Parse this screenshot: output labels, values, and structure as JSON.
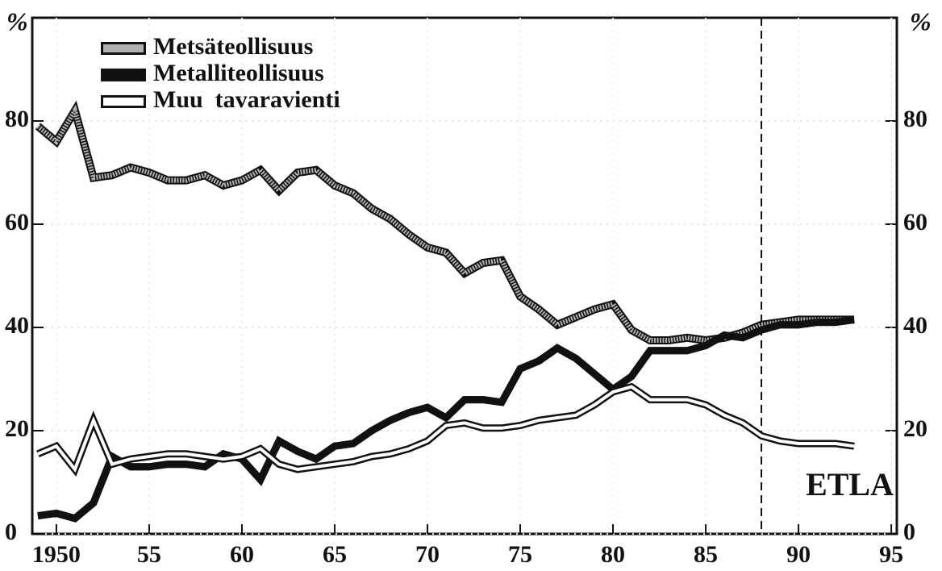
{
  "chart_data": {
    "type": "line",
    "unit": "%",
    "annotation": "ETLA",
    "reference_line_x": 1988,
    "x": [
      1949,
      1950,
      1951,
      1952,
      1953,
      1954,
      1955,
      1956,
      1957,
      1958,
      1959,
      1960,
      1961,
      1962,
      1963,
      1964,
      1965,
      1966,
      1967,
      1968,
      1969,
      1970,
      1971,
      1972,
      1973,
      1974,
      1975,
      1976,
      1977,
      1978,
      1979,
      1980,
      1981,
      1982,
      1983,
      1984,
      1985,
      1986,
      1987,
      1988,
      1989,
      1990,
      1991,
      1992,
      1993
    ],
    "series": [
      {
        "name": "Metsäteollisuus",
        "color": "#b0b0b0",
        "values": [
          79,
          76,
          82,
          69,
          69.5,
          71,
          70,
          68.5,
          68.5,
          69.5,
          67.5,
          68.5,
          70.5,
          66.5,
          70,
          70.5,
          67.5,
          66,
          63,
          61,
          58,
          55.5,
          54.5,
          50.5,
          52.5,
          53,
          46,
          43.5,
          40.5,
          42,
          43.5,
          44.5,
          39.5,
          37.5,
          37.5,
          38,
          37.5,
          38,
          39,
          40.5,
          41,
          41.5,
          41.5,
          41.5,
          41.5
        ]
      },
      {
        "name": "Metalliteollisuus",
        "color": "#111111",
        "values": [
          3.5,
          4,
          3,
          6,
          15,
          13,
          13,
          13.5,
          13.5,
          13,
          15.5,
          14.5,
          10.5,
          18,
          16,
          14.5,
          17,
          17.5,
          20,
          22,
          23.5,
          24.5,
          22.5,
          26,
          26,
          25.5,
          32,
          33.5,
          36,
          34,
          31,
          28,
          30.5,
          35.5,
          35.5,
          35.5,
          36.5,
          38.5,
          38,
          39.5,
          40.5,
          40.5,
          41,
          41,
          41.5
        ]
      },
      {
        "name": "Muu  tavaravienti",
        "color": "#ffffff",
        "values": [
          15.5,
          17,
          12.5,
          22,
          13.5,
          14.5,
          15,
          15.5,
          15.5,
          15,
          14.5,
          15,
          16.5,
          13.5,
          12.5,
          13,
          13.5,
          14,
          15,
          15.5,
          16.5,
          18,
          21,
          21.5,
          20.5,
          20.5,
          21,
          22,
          22.5,
          23,
          25,
          27.5,
          28.5,
          26,
          26,
          26,
          25,
          23,
          21.5,
          19,
          18,
          17.5,
          17.5,
          17.5,
          17
        ]
      }
    ],
    "xlim": [
      1948.7,
      1995.3
    ],
    "xticks": [
      1950,
      {
        "value": 1955,
        "label": "55"
      },
      {
        "value": 1960,
        "label": "60"
      },
      {
        "value": 1965,
        "label": "65"
      },
      {
        "value": 1970,
        "label": "70"
      },
      {
        "value": 1975,
        "label": "75"
      },
      {
        "value": 1980,
        "label": "80"
      },
      {
        "value": 1985,
        "label": "85"
      },
      {
        "value": 1990,
        "label": "90"
      },
      {
        "value": 1995,
        "label": "95"
      }
    ],
    "ylim": [
      0,
      100
    ],
    "yticks": [
      0,
      20,
      40,
      60,
      80
    ],
    "y2lim": [
      0,
      100
    ],
    "y2ticks": [
      0,
      20,
      40,
      60,
      80
    ],
    "grid": true,
    "legend": "top-left"
  }
}
